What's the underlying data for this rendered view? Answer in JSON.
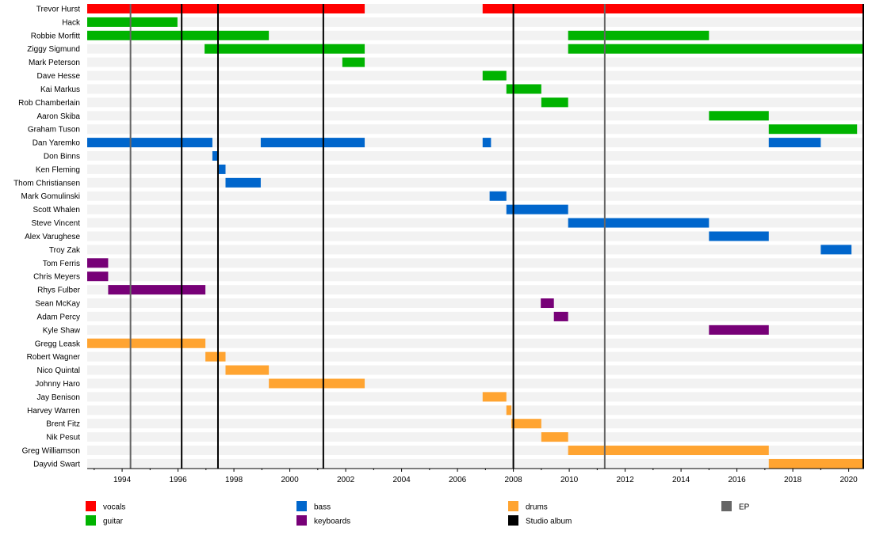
{
  "chart_data": {
    "type": "timeline",
    "title": "",
    "xlabel": "",
    "ylabel": "",
    "xlim": [
      1992.75,
      2020.55
    ],
    "grid": false,
    "legend_placement": "bottom",
    "x_ticks": [
      1994,
      1996,
      1998,
      2000,
      2002,
      2004,
      2006,
      2008,
      2010,
      2012,
      2014,
      2016,
      2018,
      2020
    ],
    "colors": {
      "vocals": "#ff0000",
      "guitar": "#00b300",
      "bass": "#0066cc",
      "keyboards": "#770077",
      "drums": "#ffa431",
      "EP": "#666666",
      "Studio album": "#000000"
    },
    "legend": [
      {
        "key": "vocals",
        "label": "vocals"
      },
      {
        "key": "guitar",
        "label": "guitar"
      },
      {
        "key": "bass",
        "label": "bass"
      },
      {
        "key": "keyboards",
        "label": "keyboards"
      },
      {
        "key": "drums",
        "label": "drums"
      },
      {
        "key": "Studio album",
        "label": "Studio album"
      },
      {
        "key": "EP",
        "label": "EP"
      }
    ],
    "studio_albums": [
      1996.13,
      1997.43,
      2001.2,
      2008.0,
      2020.54
    ],
    "eps": [
      1994.3,
      2011.27
    ],
    "members": [
      {
        "name": "Trevor Hurst",
        "role": "vocals",
        "periods": [
          [
            1992.75,
            2002.68
          ],
          [
            2006.9,
            2020.55
          ]
        ]
      },
      {
        "name": "Hack",
        "role": "guitar",
        "periods": [
          [
            1992.75,
            1995.98
          ]
        ]
      },
      {
        "name": "Robbie Morfitt",
        "role": "guitar",
        "periods": [
          [
            1992.75,
            1999.25
          ],
          [
            2009.96,
            2015.0
          ]
        ]
      },
      {
        "name": "Ziggy Sigmund",
        "role": "guitar",
        "periods": [
          [
            1996.95,
            2002.68
          ],
          [
            2009.96,
            2020.55
          ]
        ]
      },
      {
        "name": "Mark Peterson",
        "role": "guitar",
        "periods": [
          [
            2001.88,
            2002.68
          ]
        ]
      },
      {
        "name": "Dave Hesse",
        "role": "guitar",
        "periods": [
          [
            2006.9,
            2007.75
          ]
        ]
      },
      {
        "name": "Kai Markus",
        "role": "guitar",
        "periods": [
          [
            2007.75,
            2009.0
          ]
        ]
      },
      {
        "name": "Rob Chamberlain",
        "role": "guitar",
        "periods": [
          [
            2009.0,
            2009.96
          ]
        ]
      },
      {
        "name": "Aaron Skiba",
        "role": "guitar",
        "periods": [
          [
            2015.0,
            2017.14
          ]
        ]
      },
      {
        "name": "Graham Tuson",
        "role": "guitar",
        "periods": [
          [
            2017.14,
            2020.3
          ]
        ]
      },
      {
        "name": "Dan Yaremko",
        "role": "bass",
        "periods": [
          [
            1992.75,
            1997.23
          ],
          [
            1998.96,
            2002.68
          ],
          [
            2006.9,
            2007.2
          ],
          [
            2017.14,
            2019.0
          ]
        ]
      },
      {
        "name": "Don Binns",
        "role": "bass",
        "periods": [
          [
            1997.23,
            1997.46
          ]
        ]
      },
      {
        "name": "Ken Fleming",
        "role": "bass",
        "periods": [
          [
            1997.46,
            1997.7
          ]
        ]
      },
      {
        "name": "Thom Christiansen",
        "role": "bass",
        "periods": [
          [
            1997.7,
            1998.96
          ]
        ]
      },
      {
        "name": "Mark Gomulinski",
        "role": "bass",
        "periods": [
          [
            2007.15,
            2007.75
          ]
        ]
      },
      {
        "name": "Scott Whalen",
        "role": "bass",
        "periods": [
          [
            2007.75,
            2009.96
          ]
        ]
      },
      {
        "name": "Steve Vincent",
        "role": "bass",
        "periods": [
          [
            2009.96,
            2015.0
          ]
        ]
      },
      {
        "name": "Alex Varughese",
        "role": "bass",
        "periods": [
          [
            2015.0,
            2017.14
          ]
        ]
      },
      {
        "name": "Troy Zak",
        "role": "bass",
        "periods": [
          [
            2019.0,
            2020.1
          ]
        ]
      },
      {
        "name": "Tom Ferris",
        "role": "keyboards",
        "periods": [
          [
            1992.75,
            1993.5
          ]
        ]
      },
      {
        "name": "Chris Meyers",
        "role": "keyboards",
        "periods": [
          [
            1992.75,
            1993.5
          ]
        ]
      },
      {
        "name": "Rhys Fulber",
        "role": "keyboards",
        "periods": [
          [
            1993.5,
            1996.98
          ]
        ]
      },
      {
        "name": "Sean McKay",
        "role": "keyboards",
        "periods": [
          [
            2008.98,
            2009.45
          ]
        ]
      },
      {
        "name": "Adam Percy",
        "role": "keyboards",
        "periods": [
          [
            2009.45,
            2009.96
          ]
        ]
      },
      {
        "name": "Kyle Shaw",
        "role": "keyboards",
        "periods": [
          [
            2015.0,
            2017.14
          ]
        ]
      },
      {
        "name": "Gregg Leask",
        "role": "drums",
        "periods": [
          [
            1992.75,
            1996.98
          ]
        ]
      },
      {
        "name": "Robert Wagner",
        "role": "drums",
        "periods": [
          [
            1996.98,
            1997.7
          ]
        ]
      },
      {
        "name": "Nico Quintal",
        "role": "drums",
        "periods": [
          [
            1997.7,
            1999.25
          ]
        ]
      },
      {
        "name": "Johnny Haro",
        "role": "drums",
        "periods": [
          [
            1999.25,
            2002.68
          ]
        ]
      },
      {
        "name": "Jay Benison",
        "role": "drums",
        "periods": [
          [
            2006.9,
            2007.75
          ]
        ]
      },
      {
        "name": "Harvey Warren",
        "role": "drums",
        "periods": [
          [
            2007.75,
            2007.93
          ]
        ]
      },
      {
        "name": "Brent Fitz",
        "role": "drums",
        "periods": [
          [
            2007.93,
            2009.0
          ]
        ]
      },
      {
        "name": "Nik Pesut",
        "role": "drums",
        "periods": [
          [
            2009.0,
            2009.96
          ]
        ]
      },
      {
        "name": "Greg Williamson",
        "role": "drums",
        "periods": [
          [
            2009.96,
            2017.14
          ]
        ]
      },
      {
        "name": "Dayvid Swart",
        "role": "drums",
        "periods": [
          [
            2017.14,
            2020.55
          ]
        ]
      }
    ]
  }
}
